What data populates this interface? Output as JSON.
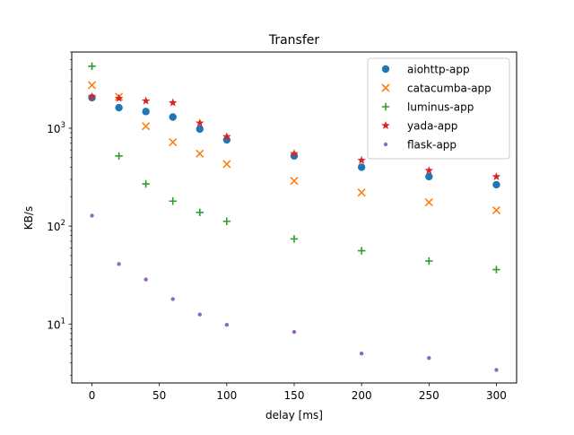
{
  "chart_data": {
    "type": "scatter",
    "title": "Transfer",
    "xlabel": "delay [ms]",
    "ylabel": "KB/s",
    "xlim": [
      -15,
      315
    ],
    "ylim": [
      2.5,
      6000
    ],
    "yscale": "log",
    "grid": false,
    "legend_position": "top-right",
    "x": [
      0,
      20,
      40,
      60,
      80,
      100,
      150,
      200,
      250,
      300
    ],
    "xticks": [
      0,
      50,
      100,
      150,
      200,
      250,
      300
    ],
    "yticks": [
      {
        "base": "10",
        "exp": "1",
        "value": 10
      },
      {
        "base": "10",
        "exp": "2",
        "value": 100
      },
      {
        "base": "10",
        "exp": "3",
        "value": 1000
      }
    ],
    "series": [
      {
        "name": "aiohttp-app",
        "marker": "circle",
        "color": "#1f77b4",
        "values": [
          2050,
          1620,
          1480,
          1300,
          980,
          760,
          520,
          400,
          320,
          265
        ]
      },
      {
        "name": "catacumba-app",
        "marker": "x",
        "color": "#ff7f0e",
        "values": [
          2750,
          2100,
          1050,
          720,
          550,
          430,
          290,
          220,
          175,
          145
        ]
      },
      {
        "name": "luminus-app",
        "marker": "plus",
        "color": "#2ca02c",
        "values": [
          4300,
          520,
          270,
          180,
          138,
          112,
          74,
          56,
          44,
          36
        ]
      },
      {
        "name": "yada-app",
        "marker": "star",
        "color": "#d62728",
        "values": [
          2100,
          2020,
          1900,
          1820,
          1130,
          820,
          550,
          470,
          370,
          320
        ]
      },
      {
        "name": "flask-app",
        "marker": "dot",
        "color": "#9467bd",
        "values": [
          128,
          41,
          28.5,
          18,
          12.5,
          9.8,
          8.3,
          5.0,
          4.5,
          3.4
        ]
      }
    ]
  }
}
